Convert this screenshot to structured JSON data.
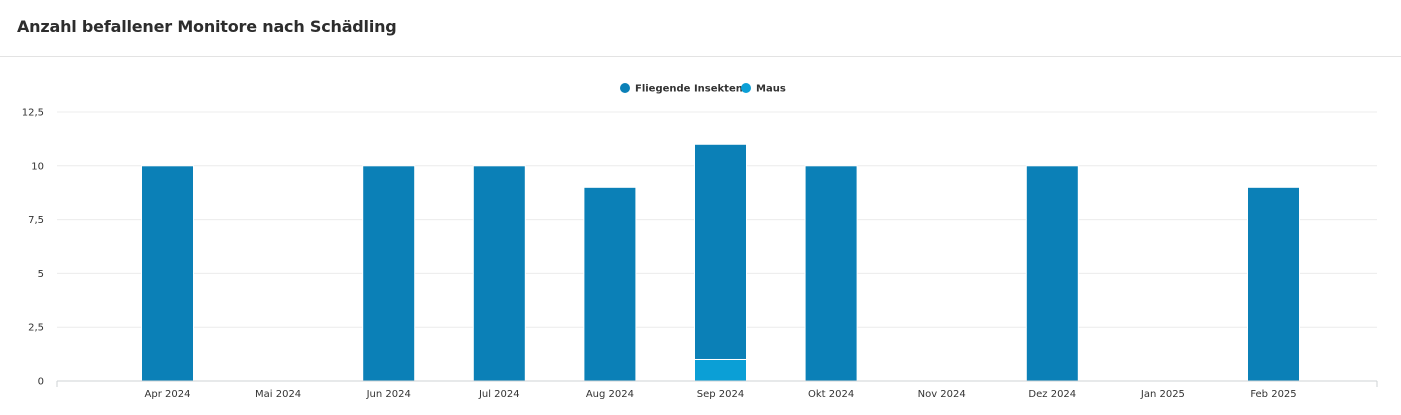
{
  "header": {
    "title": "Anzahl befallener Monitore nach Schädling"
  },
  "chart_data": {
    "type": "bar",
    "stacked": true,
    "title": "Anzahl befallener Monitore nach Schädling",
    "xlabel": "",
    "ylabel": "",
    "categories": [
      "Apr 2024",
      "Mai 2024",
      "Jun 2024",
      "Jul 2024",
      "Aug 2024",
      "Sep 2024",
      "Okt 2024",
      "Nov 2024",
      "Dez 2024",
      "Jan 2025",
      "Feb 2025"
    ],
    "series": [
      {
        "name": "Fliegende Insekten",
        "color": "#0b80b7",
        "values": [
          10,
          0,
          10,
          10,
          9,
          10,
          10,
          0,
          10,
          0,
          9
        ]
      },
      {
        "name": "Maus",
        "color": "#0b9fd6",
        "values": [
          0,
          0,
          0,
          0,
          0,
          1,
          0,
          0,
          0,
          0,
          0
        ]
      }
    ],
    "ylim": [
      0,
      12.5
    ],
    "yticks": [
      "0",
      "2,5",
      "5",
      "7,5",
      "10",
      "12,5"
    ],
    "ytick_values": [
      0,
      2.5,
      5,
      7.5,
      10,
      12.5
    ],
    "grid": true,
    "legend_position": "top-center"
  }
}
